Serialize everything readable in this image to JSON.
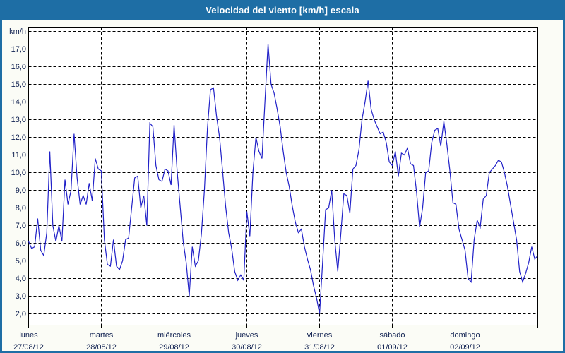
{
  "window": {
    "title": "Velocidad del viento [km/h] escala"
  },
  "colors": {
    "title_bar": "#1e6ea5",
    "window_edge": "#175678",
    "content_bg": "#fbfcf6",
    "plot_bg": "#ffffff",
    "grid": "#000000",
    "line": "#2121c8",
    "label_text": "#0f2050",
    "title_text": "#ffffff"
  },
  "y_axis": {
    "labels": [
      {
        "value": 18,
        "label": "km/h"
      },
      {
        "value": 17,
        "label": "17,0"
      },
      {
        "value": 16,
        "label": "16,0"
      },
      {
        "value": 15,
        "label": "15,0"
      },
      {
        "value": 14,
        "label": "14,0"
      },
      {
        "value": 13,
        "label": "13,0"
      },
      {
        "value": 12,
        "label": "12,0"
      },
      {
        "value": 11,
        "label": "11,0"
      },
      {
        "value": 10,
        "label": "10,0"
      },
      {
        "value": 9,
        "label": "9,0"
      },
      {
        "value": 8,
        "label": "8,0"
      },
      {
        "value": 7,
        "label": "7,0"
      },
      {
        "value": 6,
        "label": "6,0"
      },
      {
        "value": 5,
        "label": "5,0"
      },
      {
        "value": 4,
        "label": "4,0"
      },
      {
        "value": 3,
        "label": "3,0"
      },
      {
        "value": 2,
        "label": "2,0"
      }
    ]
  },
  "chart_data": {
    "type": "line",
    "title": "Velocidad del viento [km/h] escala",
    "ylabel": "km/h",
    "ylim": [
      1.36,
      18.24
    ],
    "y_tick_step": 1,
    "grid": "dashed",
    "legend": "none",
    "x_range_hours": [
      0,
      168
    ],
    "x_step_hours": 1,
    "days": [
      {
        "name": "lunes",
        "date": "27/08/12"
      },
      {
        "name": "martes",
        "date": "28/08/12"
      },
      {
        "name": "miércoles",
        "date": "29/08/12"
      },
      {
        "name": "jueves",
        "date": "30/08/12"
      },
      {
        "name": "viernes",
        "date": "31/08/12"
      },
      {
        "name": "sábado",
        "date": "01/09/12"
      },
      {
        "name": "domingo",
        "date": "02/09/12"
      }
    ],
    "series": [
      {
        "name": "velocidad_viento_kmh",
        "values": [
          6.1,
          5.7,
          5.8,
          7.4,
          5.6,
          5.3,
          6.6,
          11.2,
          7.0,
          6.1,
          7.0,
          6.1,
          9.6,
          8.2,
          9.0,
          12.2,
          9.7,
          8.2,
          8.7,
          8.2,
          9.4,
          8.4,
          10.8,
          10.2,
          10.1,
          6.2,
          4.8,
          4.7,
          6.2,
          4.7,
          4.5,
          5.0,
          6.2,
          6.3,
          8.0,
          9.7,
          9.8,
          8.0,
          8.7,
          7.0,
          12.8,
          12.6,
          10.4,
          9.6,
          9.5,
          10.2,
          10.1,
          9.3,
          12.7,
          10.1,
          8.1,
          6.1,
          4.9,
          3.0,
          5.8,
          4.7,
          5.0,
          6.5,
          9.0,
          12.5,
          14.7,
          14.8,
          13.2,
          12.0,
          10.1,
          8.1,
          6.6,
          5.7,
          4.4,
          3.9,
          4.2,
          3.9,
          7.8,
          6.4,
          10.0,
          12.0,
          11.2,
          10.8,
          14.1,
          17.3,
          15.0,
          14.5,
          13.6,
          12.6,
          11.2,
          10.0,
          9.2,
          8.1,
          7.2,
          6.6,
          6.8,
          5.8,
          5.1,
          4.5,
          3.6,
          2.9,
          2.0,
          4.9,
          7.9,
          8.0,
          9.0,
          6.2,
          4.4,
          6.5,
          8.8,
          8.7,
          7.7,
          10.2,
          10.4,
          11.3,
          13.0,
          14.0,
          15.2,
          13.6,
          13.0,
          12.6,
          12.2,
          12.3,
          11.7,
          10.6,
          10.4,
          11.2,
          9.8,
          11.1,
          11.0,
          11.4,
          10.5,
          10.4,
          8.9,
          6.9,
          8.0,
          10.0,
          10.1,
          11.7,
          12.4,
          12.5,
          11.5,
          12.9,
          11.6,
          10.1,
          8.3,
          8.2,
          6.8,
          6.2,
          5.6,
          4.0,
          3.8,
          6.2,
          7.3,
          6.9,
          8.5,
          8.7,
          10.0,
          10.2,
          10.4,
          10.7,
          10.6,
          10.0,
          9.2,
          8.2,
          7.2,
          6.2,
          4.4,
          3.8,
          4.3,
          4.9,
          5.8,
          5.1,
          5.3
        ]
      }
    ]
  }
}
